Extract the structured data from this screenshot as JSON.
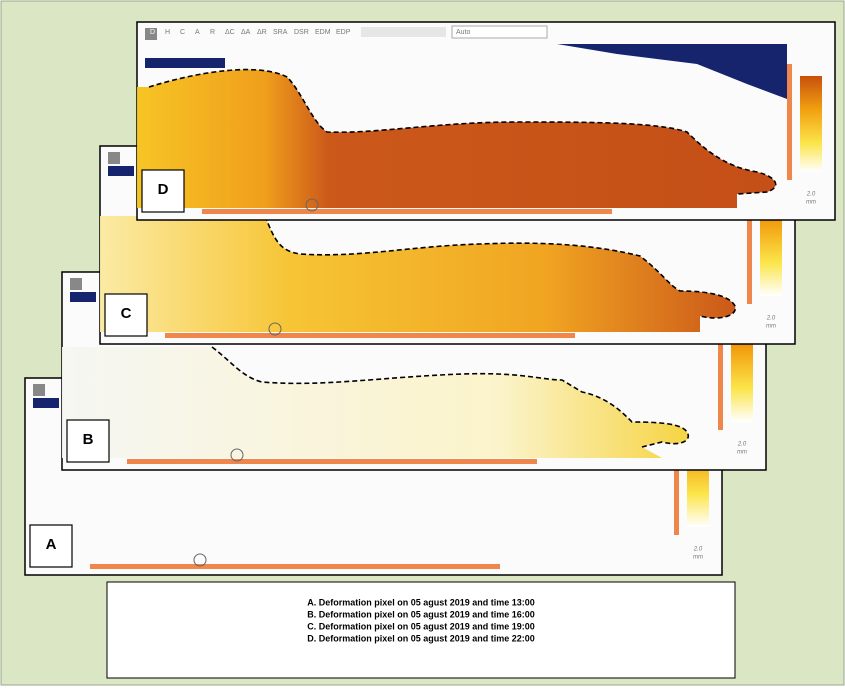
{
  "panels": [
    {
      "label": "A",
      "scale_value": "2.0",
      "scale_unit": "mm"
    },
    {
      "label": "B",
      "scale_value": "2.0",
      "scale_unit": "mm"
    },
    {
      "label": "C",
      "scale_value": "2.0",
      "scale_unit": "mm"
    },
    {
      "label": "D",
      "scale_value": "2.0",
      "scale_unit": "mm"
    }
  ],
  "toolbar": {
    "buttons": [
      "D",
      "H",
      "C",
      "A",
      "R",
      "ΔC",
      "ΔA",
      "ΔR",
      "SRA",
      "DSR",
      "EDM",
      "EDP"
    ],
    "dropdown": "Auto"
  },
  "caption": [
    "A. Deformation pixel on 05 agust 2019 and time 13:00",
    "B. Deformation pixel on 05 agust 2019 and time 16:00",
    "C. Deformation pixel on 05 agust 2019 and time 19:00",
    "D. Deformation pixel on 05 agust 2019 and time 22:00"
  ]
}
